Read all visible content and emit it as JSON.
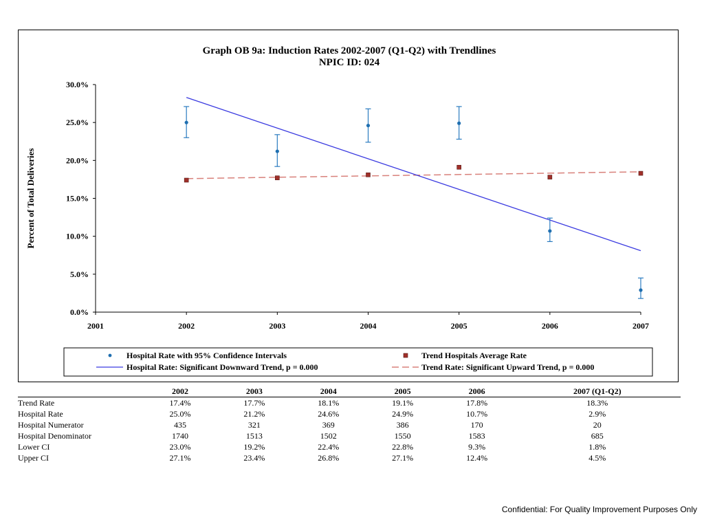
{
  "chart_data": {
    "type": "scatter",
    "title": "Graph OB 9a: Induction Rates 2002-2007 (Q1-Q2) with Trendlines",
    "subtitle": "NPIC ID: 024",
    "ylabel": "Percent of Total Deliveries",
    "xlabel": "",
    "x_ticks": [
      "2001",
      "2002",
      "2003",
      "2004",
      "2005",
      "2006",
      "2007"
    ],
    "xlim": [
      2001,
      2007
    ],
    "ylim": [
      0,
      30
    ],
    "y_ticks": [
      "0.0%",
      "5.0%",
      "10.0%",
      "15.0%",
      "20.0%",
      "25.0%",
      "30.0%"
    ],
    "y_tick_values": [
      0,
      5,
      10,
      15,
      20,
      25,
      30
    ],
    "x": [
      2002,
      2003,
      2004,
      2005,
      2006,
      2007
    ],
    "series": [
      {
        "name": "Hospital Rate with 95% Confidence Intervals",
        "kind": "points-errorbars",
        "color": "#2a7bc0",
        "values": [
          25.0,
          21.2,
          24.6,
          24.9,
          10.7,
          2.9
        ],
        "lower": [
          23.0,
          19.2,
          22.4,
          22.8,
          9.3,
          1.8
        ],
        "upper": [
          27.1,
          23.4,
          26.8,
          27.1,
          12.4,
          4.5
        ]
      },
      {
        "name": "Trend Hospitals Average Rate",
        "kind": "squares",
        "color": "#a0302a",
        "values": [
          17.4,
          17.7,
          18.1,
          19.1,
          17.8,
          18.3
        ]
      },
      {
        "name": "Hospital Rate: Significant Downward Trend, p = 0.000",
        "kind": "trendline",
        "color": "#3a3ae0",
        "dash": "none",
        "start": [
          2002,
          28.3
        ],
        "end": [
          2007,
          8.1
        ]
      },
      {
        "name": "Trend Rate: Significant Upward Trend, p = 0.000",
        "kind": "trendline",
        "color": "#d8807a",
        "dash": "dashed",
        "start": [
          2002,
          17.6
        ],
        "end": [
          2007,
          18.5
        ]
      }
    ],
    "legend": "bottom"
  },
  "table": {
    "columns": [
      "",
      "2002",
      "2003",
      "2004",
      "2005",
      "2006",
      "2007 (Q1-Q2)"
    ],
    "rows": [
      {
        "label": "Trend Rate",
        "cells": [
          "17.4%",
          "17.7%",
          "18.1%",
          "19.1%",
          "17.8%",
          "18.3%"
        ]
      },
      {
        "label": "Hospital Rate",
        "cells": [
          "25.0%",
          "21.2%",
          "24.6%",
          "24.9%",
          "10.7%",
          "2.9%"
        ]
      },
      {
        "label": "Hospital Numerator",
        "cells": [
          "435",
          "321",
          "369",
          "386",
          "170",
          "20"
        ]
      },
      {
        "label": "Hospital Denominator",
        "cells": [
          "1740",
          "1513",
          "1502",
          "1550",
          "1583",
          "685"
        ]
      },
      {
        "label": "Lower CI",
        "cells": [
          "23.0%",
          "19.2%",
          "22.4%",
          "22.8%",
          "9.3%",
          "1.8%"
        ]
      },
      {
        "label": "Upper CI",
        "cells": [
          "27.1%",
          "23.4%",
          "26.8%",
          "27.1%",
          "12.4%",
          "4.5%"
        ]
      }
    ]
  },
  "footer": "Confidential: For Quality Improvement Purposes Only"
}
